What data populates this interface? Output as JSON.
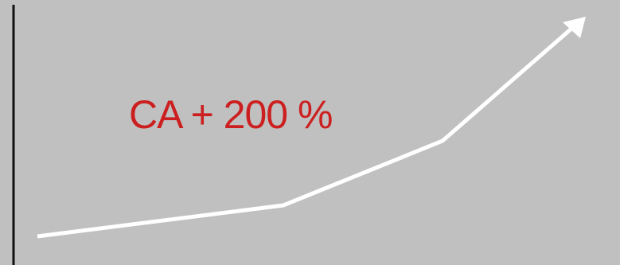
{
  "headline": "CA + 200 %",
  "colors": {
    "background": "#c0c0c0",
    "headline": "#cc1f1f",
    "trend_line": "#ffffff",
    "axis": "#111111"
  },
  "icons": {
    "arrowhead": "arrow-up-right-icon"
  }
}
